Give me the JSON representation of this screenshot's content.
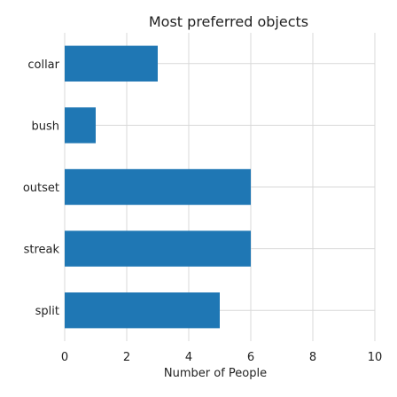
{
  "chart_data": {
    "type": "bar",
    "orientation": "horizontal",
    "title": "Most preferred objects",
    "xlabel": "Number of People",
    "ylabel": "",
    "categories": [
      "collar",
      "bush",
      "outset",
      "streak",
      "split"
    ],
    "values": [
      3,
      1,
      6,
      6,
      5
    ],
    "xlim": [
      0,
      10
    ],
    "xticks": [
      0,
      2,
      4,
      6,
      8,
      10
    ],
    "grid": true,
    "bar_color": "#1f77b4"
  }
}
